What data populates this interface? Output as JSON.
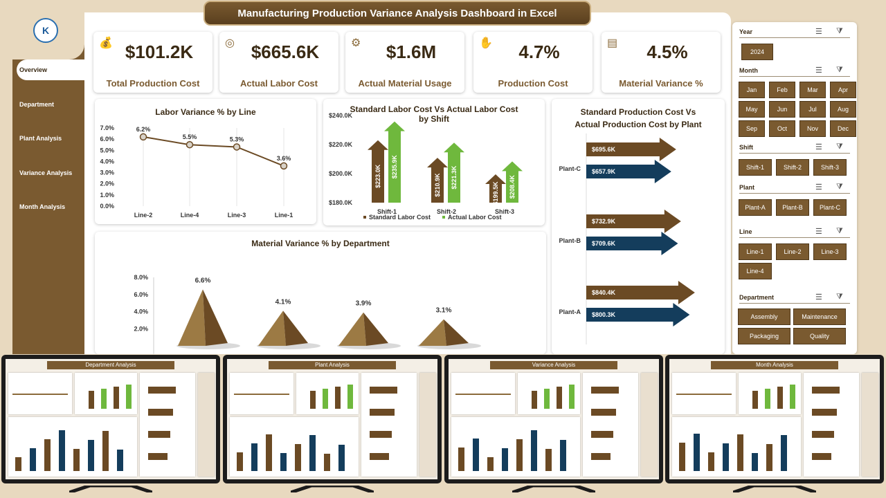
{
  "title": "Manufacturing Production Variance Analysis Dashboard in Excel",
  "logo_text": "K",
  "nav": [
    "Overview",
    "Department",
    "Plant Analysis",
    "Variance Analysis",
    "Month Analysis"
  ],
  "kpis": [
    {
      "value": "$101.2K",
      "label": "Total Production Cost",
      "icon": "money-bag-icon"
    },
    {
      "value": "$665.6K",
      "label": "Actual Labor Cost",
      "icon": "coins-icon"
    },
    {
      "value": "$1.6M",
      "label": "Actual Material Usage",
      "icon": "gears-icon"
    },
    {
      "value": "4.7%",
      "label": "Production Cost",
      "icon": "money-hand-icon"
    },
    {
      "value": "4.5%",
      "label": "Material Variance %",
      "icon": "growth-chart-icon"
    }
  ],
  "chart_data": [
    {
      "type": "line",
      "title": "Labor Variance % by Line",
      "categories": [
        "Line-2",
        "Line-4",
        "Line-3",
        "Line-1"
      ],
      "values": [
        6.2,
        5.5,
        5.3,
        3.6
      ],
      "data_labels": [
        "6.2%",
        "5.5%",
        "5.3%",
        "3.6%"
      ],
      "yticks": [
        "7.0%",
        "6.0%",
        "5.0%",
        "4.0%",
        "3.0%",
        "2.0%",
        "1.0%",
        "0.0%"
      ],
      "ylim": [
        0,
        7
      ]
    },
    {
      "type": "bar",
      "title": "Standard Labor Cost Vs Actual Labor Cost by Shift",
      "categories": [
        "Shift-1",
        "Shift-2",
        "Shift-3"
      ],
      "series": [
        {
          "name": "Standard Labor Cost",
          "values": [
            223.0,
            210.9,
            199.5
          ],
          "labels": [
            "$223.0K",
            "$210.9K",
            "$199.5K"
          ],
          "color": "#6b4a24"
        },
        {
          "name": "Actual Labor Cost",
          "values": [
            235.9,
            221.3,
            208.4
          ],
          "labels": [
            "$235.9K",
            "$221.3K",
            "$208.4K"
          ],
          "color": "#6fb83d"
        }
      ],
      "yticks": [
        "$240.0K",
        "$220.0K",
        "$200.0K",
        "$180.0K"
      ],
      "ylim": [
        180,
        240
      ]
    },
    {
      "type": "bar",
      "title": "Standard Production Cost Vs Actual Production Cost by Plant",
      "categories": [
        "Plant-C",
        "Plant-B",
        "Plant-A"
      ],
      "series": [
        {
          "name": "Standard Production Cost",
          "values": [
            695.6,
            732.9,
            840.4
          ],
          "labels": [
            "$695.6K",
            "$732.9K",
            "$840.4K"
          ],
          "color": "#6b4a24"
        },
        {
          "name": "Actual Production Cost",
          "values": [
            657.9,
            709.6,
            800.3
          ],
          "labels": [
            "$657.9K",
            "$709.6K",
            "$800.3K"
          ],
          "color": "#143d5c"
        }
      ]
    },
    {
      "type": "bar",
      "title": "Material Variance % by Department",
      "categories": [
        "",
        "",
        "",
        ""
      ],
      "values": [
        6.6,
        4.1,
        3.9,
        3.1
      ],
      "data_labels": [
        "6.6%",
        "4.1%",
        "3.9%",
        "3.1%"
      ],
      "yticks": [
        "8.0%",
        "6.0%",
        "4.0%",
        "2.0%"
      ],
      "ylim": [
        0,
        8
      ]
    }
  ],
  "slicers": {
    "year": {
      "label": "Year",
      "items": [
        "2024"
      ]
    },
    "month": {
      "label": "Month",
      "items": [
        "Jan",
        "Feb",
        "Mar",
        "Apr",
        "May",
        "Jun",
        "Jul",
        "Aug",
        "Sep",
        "Oct",
        "Nov",
        "Dec"
      ]
    },
    "shift": {
      "label": "Shift",
      "items": [
        "Shift-1",
        "Shift-2",
        "Shift-3"
      ]
    },
    "plant": {
      "label": "Plant",
      "items": [
        "Plant-A",
        "Plant-B",
        "Plant-C"
      ]
    },
    "line": {
      "label": "Line",
      "items": [
        "Line-1",
        "Line-2",
        "Line-3",
        "Line-4"
      ]
    },
    "department": {
      "label": "Department",
      "items": [
        "Assembly",
        "Maintenance",
        "Packaging",
        "Quality"
      ]
    }
  },
  "previews": [
    {
      "title": "Department Analysis"
    },
    {
      "title": "Plant Analysis"
    },
    {
      "title": "Variance Analysis"
    },
    {
      "title": "Month Analysis"
    }
  ],
  "colors": {
    "brown": "#7a5a30",
    "dark_brown": "#6b4a24",
    "green": "#6fb83d",
    "navy": "#143d5c",
    "beige": "#e8d9bf"
  }
}
